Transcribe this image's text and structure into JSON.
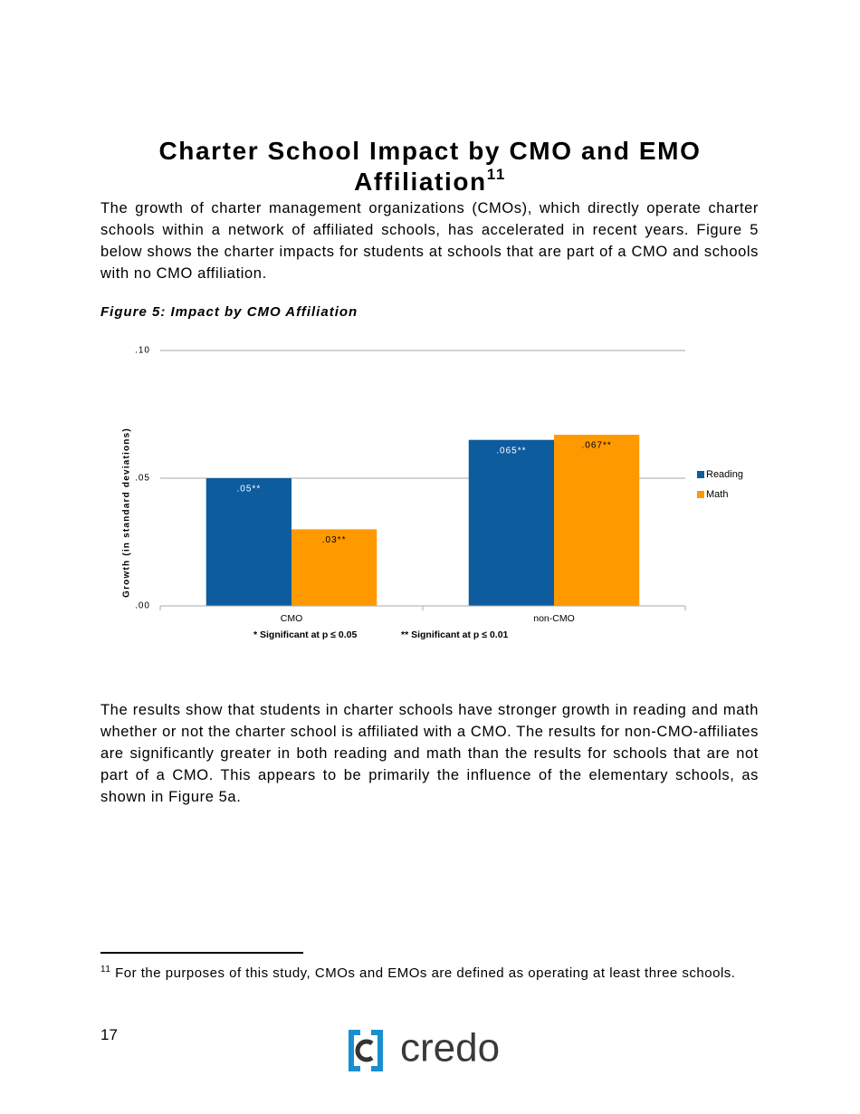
{
  "heading": {
    "title": "Charter School Impact by CMO and EMO Affiliation",
    "footnote_ref": "11"
  },
  "paragraphs": [
    "The growth of charter management organizations (CMOs), which directly operate charter schools within a network of affiliated schools, has accelerated in recent years.  Figure 5 below shows the charter impacts for students at schools that are part of a CMO and schools with no CMO affiliation.",
    "The results show that students in charter schools have stronger growth in reading and math whether or not the charter school is affiliated with a CMO.  The results for non-CMO-affiliates are significantly greater in both reading and math than the results for schools that are not part of a CMO. This appears to be primarily the influence of the elementary schools, as shown in Figure 5a."
  ],
  "figure_caption": "Figure 5: Impact by CMO Affiliation",
  "chart_data": {
    "type": "bar",
    "y_label": "Growth (in standard deviations)",
    "categories": [
      "CMO",
      "non-CMO"
    ],
    "series": [
      {
        "name": "Reading",
        "color": "#0d5c9e",
        "values": [
          0.05,
          0.065
        ],
        "value_labels": [
          ".05**",
          ".065**"
        ]
      },
      {
        "name": "Math",
        "color": "#ff9900",
        "values": [
          0.03,
          0.067
        ],
        "value_labels": [
          ".03**",
          ".067**"
        ]
      }
    ],
    "ylim": [
      0,
      0.1
    ],
    "yticks": [
      {
        "value": 0,
        "label": ".00"
      },
      {
        "value": 0.05,
        "label": ".05"
      },
      {
        "value": 0.1,
        "label": ".10"
      }
    ],
    "grid": true,
    "legend": "right",
    "annotations": [
      "* Significant  at p ≤ 0.05",
      "** Significant  at p ≤ 0.01"
    ]
  },
  "footnote": {
    "marker": "11",
    "text": "For the purposes of this study, CMOs  and EMOs are defined as operating at least three schools."
  },
  "page_number": "17",
  "logo": "credo"
}
